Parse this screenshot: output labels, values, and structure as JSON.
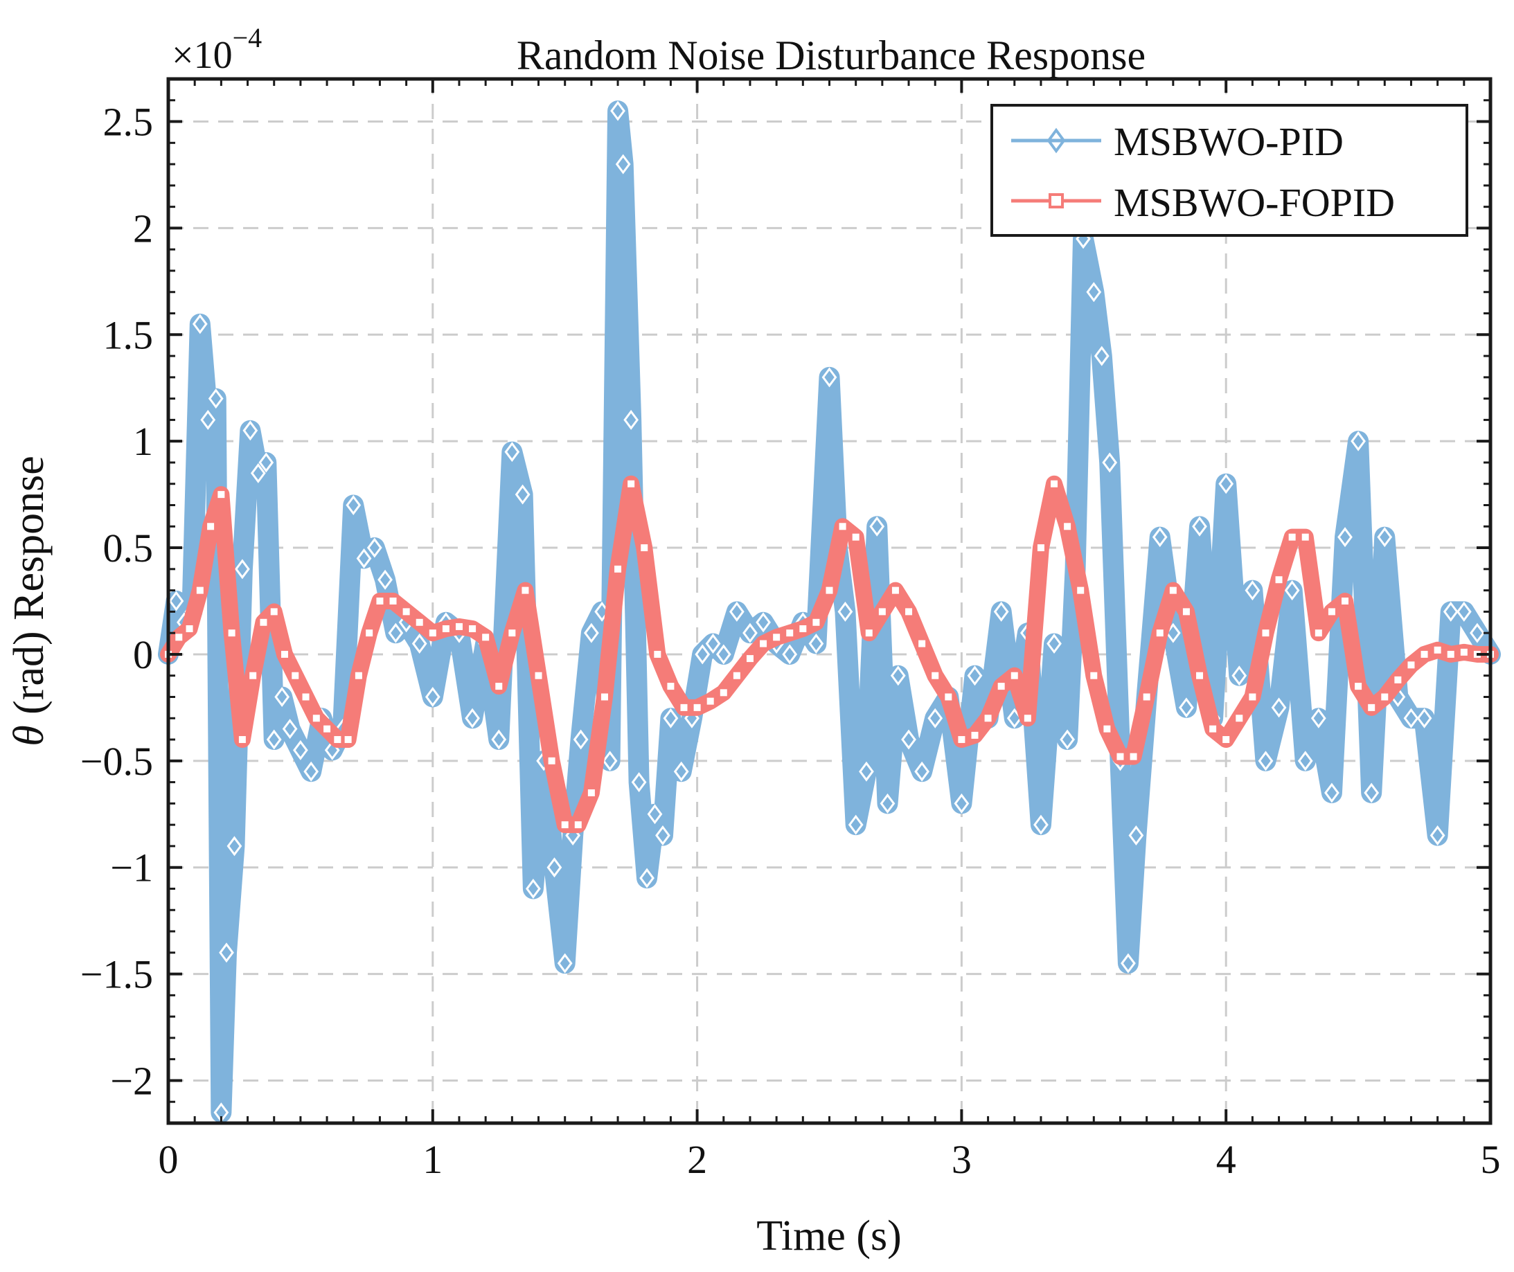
{
  "chart_data": {
    "type": "line",
    "title": "Random Noise Disturbance Response",
    "xlabel": "Time (s)",
    "ylabel_symbol": "θ",
    "ylabel_rest": " (rad) Response",
    "y_exponent_base": "×10",
    "y_exponent_power": "−4",
    "xlim": [
      0,
      5
    ],
    "ylim": [
      -2.2,
      2.7
    ],
    "x_ticks": [
      0,
      1,
      2,
      3,
      4,
      5
    ],
    "x_tick_labels": [
      "0",
      "1",
      "2",
      "3",
      "4",
      "5"
    ],
    "y_ticks": [
      -2,
      -1.5,
      -1,
      -0.5,
      0,
      0.5,
      1,
      1.5,
      2,
      2.5
    ],
    "y_tick_labels": [
      "−2",
      "−1.5",
      "−1",
      "−0.5",
      "0",
      "0.5",
      "1",
      "1.5",
      "2",
      "2.5"
    ],
    "grid": true,
    "legend_position": "top-right",
    "series": [
      {
        "name": "MSBWO-PID",
        "color": "#7fb3dc",
        "marker": "diamond",
        "x": [
          0,
          0.03,
          0.06,
          0.09,
          0.12,
          0.15,
          0.18,
          0.2,
          0.22,
          0.25,
          0.28,
          0.31,
          0.34,
          0.37,
          0.4,
          0.43,
          0.46,
          0.5,
          0.54,
          0.58,
          0.62,
          0.66,
          0.7,
          0.74,
          0.78,
          0.82,
          0.86,
          0.9,
          0.95,
          1.0,
          1.05,
          1.1,
          1.15,
          1.2,
          1.25,
          1.3,
          1.34,
          1.38,
          1.42,
          1.46,
          1.5,
          1.53,
          1.56,
          1.6,
          1.64,
          1.67,
          1.7,
          1.72,
          1.75,
          1.78,
          1.81,
          1.84,
          1.87,
          1.9,
          1.94,
          1.98,
          2.02,
          2.06,
          2.1,
          2.15,
          2.2,
          2.25,
          2.3,
          2.35,
          2.4,
          2.45,
          2.5,
          2.53,
          2.56,
          2.6,
          2.64,
          2.68,
          2.72,
          2.76,
          2.8,
          2.85,
          2.9,
          2.95,
          3.0,
          3.05,
          3.1,
          3.15,
          3.2,
          3.25,
          3.3,
          3.35,
          3.4,
          3.43,
          3.46,
          3.5,
          3.53,
          3.56,
          3.6,
          3.63,
          3.66,
          3.7,
          3.75,
          3.8,
          3.85,
          3.9,
          3.95,
          4.0,
          4.05,
          4.1,
          4.15,
          4.2,
          4.25,
          4.3,
          4.35,
          4.4,
          4.45,
          4.5,
          4.55,
          4.6,
          4.65,
          4.7,
          4.75,
          4.8,
          4.85,
          4.9,
          4.95,
          5.0
        ],
        "values": [
          0,
          0.25,
          0.15,
          0.2,
          1.55,
          1.1,
          1.2,
          -2.15,
          -1.4,
          -0.9,
          0.4,
          1.05,
          0.85,
          0.9,
          -0.4,
          -0.2,
          -0.35,
          -0.45,
          -0.55,
          -0.3,
          -0.45,
          -0.35,
          0.7,
          0.45,
          0.5,
          0.35,
          0.1,
          0.15,
          0.05,
          -0.2,
          0.15,
          0.1,
          -0.3,
          0.05,
          -0.4,
          0.95,
          0.75,
          -1.1,
          -0.5,
          -1.0,
          -1.45,
          -0.85,
          -0.4,
          0.1,
          0.2,
          -0.5,
          2.55,
          2.3,
          1.1,
          -0.6,
          -1.05,
          -0.75,
          -0.85,
          -0.3,
          -0.55,
          -0.3,
          0.0,
          0.05,
          0.0,
          0.2,
          0.1,
          0.15,
          0.05,
          0.0,
          0.15,
          0.05,
          1.3,
          0.5,
          0.2,
          -0.8,
          -0.55,
          0.6,
          -0.7,
          -0.1,
          -0.4,
          -0.55,
          -0.3,
          -0.2,
          -0.7,
          -0.1,
          -0.3,
          0.2,
          -0.3,
          0.1,
          -0.8,
          0.05,
          -0.4,
          0.4,
          1.95,
          1.7,
          1.4,
          0.9,
          -0.5,
          -1.45,
          -0.85,
          -0.2,
          0.55,
          0.1,
          -0.25,
          0.6,
          -0.3,
          0.8,
          -0.1,
          0.3,
          -0.5,
          -0.25,
          0.3,
          -0.5,
          -0.3,
          -0.65,
          0.55,
          1.0,
          -0.65,
          0.55,
          -0.2,
          -0.3,
          -0.3,
          -0.85,
          0.2,
          0.2,
          0.1,
          0.0
        ]
      },
      {
        "name": "MSBWO-FOPID",
        "color": "#f57c78",
        "marker": "square",
        "x": [
          0,
          0.04,
          0.08,
          0.12,
          0.16,
          0.2,
          0.24,
          0.28,
          0.32,
          0.36,
          0.4,
          0.44,
          0.48,
          0.52,
          0.56,
          0.6,
          0.64,
          0.68,
          0.72,
          0.76,
          0.8,
          0.85,
          0.9,
          0.95,
          1.0,
          1.05,
          1.1,
          1.15,
          1.2,
          1.25,
          1.3,
          1.35,
          1.4,
          1.45,
          1.5,
          1.55,
          1.6,
          1.65,
          1.7,
          1.75,
          1.8,
          1.85,
          1.9,
          1.95,
          2.0,
          2.05,
          2.1,
          2.15,
          2.2,
          2.25,
          2.3,
          2.35,
          2.4,
          2.45,
          2.5,
          2.55,
          2.6,
          2.65,
          2.7,
          2.75,
          2.8,
          2.85,
          2.9,
          2.95,
          3.0,
          3.05,
          3.1,
          3.15,
          3.2,
          3.25,
          3.3,
          3.35,
          3.4,
          3.45,
          3.5,
          3.55,
          3.6,
          3.65,
          3.7,
          3.75,
          3.8,
          3.85,
          3.9,
          3.95,
          4.0,
          4.05,
          4.1,
          4.15,
          4.2,
          4.25,
          4.3,
          4.35,
          4.4,
          4.45,
          4.5,
          4.55,
          4.6,
          4.65,
          4.7,
          4.75,
          4.8,
          4.85,
          4.9,
          4.95,
          5.0
        ],
        "values": [
          0,
          0.08,
          0.12,
          0.3,
          0.6,
          0.75,
          0.1,
          -0.4,
          -0.1,
          0.15,
          0.2,
          0.0,
          -0.1,
          -0.2,
          -0.3,
          -0.35,
          -0.4,
          -0.4,
          -0.1,
          0.1,
          0.25,
          0.25,
          0.2,
          0.15,
          0.1,
          0.12,
          0.13,
          0.12,
          0.08,
          -0.15,
          0.1,
          0.3,
          -0.1,
          -0.5,
          -0.8,
          -0.8,
          -0.65,
          -0.2,
          0.4,
          0.8,
          0.5,
          0.0,
          -0.15,
          -0.25,
          -0.25,
          -0.22,
          -0.18,
          -0.1,
          -0.02,
          0.05,
          0.08,
          0.1,
          0.12,
          0.15,
          0.3,
          0.6,
          0.55,
          0.1,
          0.2,
          0.3,
          0.2,
          0.05,
          -0.1,
          -0.2,
          -0.4,
          -0.38,
          -0.3,
          -0.15,
          -0.1,
          -0.3,
          0.5,
          0.8,
          0.6,
          0.3,
          -0.1,
          -0.35,
          -0.48,
          -0.48,
          -0.2,
          0.1,
          0.3,
          0.2,
          -0.1,
          -0.35,
          -0.4,
          -0.3,
          -0.2,
          0.1,
          0.35,
          0.55,
          0.55,
          0.1,
          0.2,
          0.25,
          -0.15,
          -0.25,
          -0.2,
          -0.12,
          -0.05,
          0.0,
          0.02,
          0.0,
          0.01,
          0.0,
          0.0
        ]
      }
    ]
  }
}
